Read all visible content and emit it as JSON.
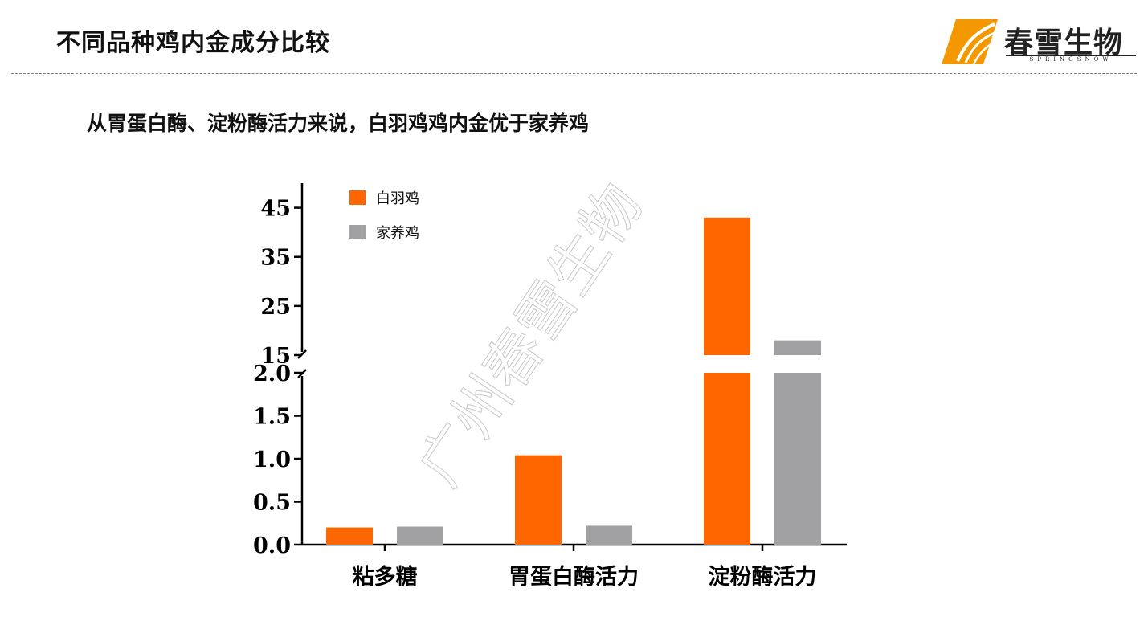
{
  "header": {
    "title": "不同品种鸡内金成分比较",
    "logo_text": "春雪生物",
    "logo_sub": "SPRINGSNOW"
  },
  "subtitle": "从胃蛋白酶、淀粉酶活力来说，白羽鸡鸡内金优于家养鸡",
  "watermark": "广州春雪生物",
  "colors": {
    "series_1": "#ff6600",
    "series_2": "#a1a1a4",
    "axis": "#000000",
    "logo_accent": "#f39800"
  },
  "chart_data": {
    "type": "bar",
    "categories": [
      "粘多糖",
      "胃蛋白酶活力",
      "淀粉酶活力"
    ],
    "series": [
      {
        "name": "白羽鸡",
        "values": [
          0.2,
          1.04,
          43
        ]
      },
      {
        "name": "家养鸡",
        "values": [
          0.21,
          0.22,
          18
        ]
      }
    ],
    "broken_axis": {
      "lower_range": [
        0,
        2.0
      ],
      "upper_range": [
        15,
        50
      ],
      "lower_ticks": [
        "0.0",
        "0.5",
        "1.0",
        "1.5",
        "2.0"
      ],
      "upper_ticks": [
        "15",
        "25",
        "35",
        "45"
      ]
    },
    "legend_position": "top-left",
    "grid": false
  }
}
